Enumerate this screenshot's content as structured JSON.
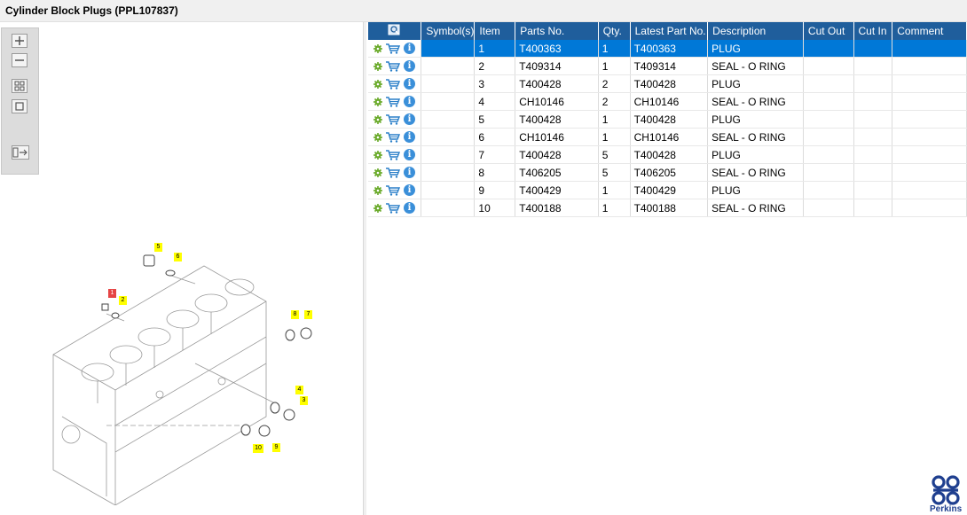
{
  "window": {
    "title": "Cylinder Block Plugs (PPL107837)"
  },
  "zoom_panel": {
    "buttons": [
      "zoom-in",
      "zoom-out",
      "fit-all",
      "fit-window",
      "toggle-panel"
    ]
  },
  "table": {
    "columns": [
      "",
      "Symbol(s)",
      "Item",
      "Parts No.",
      "Qty.",
      "Latest Part No.",
      "Description",
      "Cut Out",
      "Cut In",
      "Comment"
    ],
    "rows": [
      {
        "item": "1",
        "parts_no": "T400363",
        "qty": "1",
        "latest": "T400363",
        "desc": "PLUG",
        "selected": true
      },
      {
        "item": "2",
        "parts_no": "T409314",
        "qty": "1",
        "latest": "T409314",
        "desc": "SEAL - O RING"
      },
      {
        "item": "3",
        "parts_no": "T400428",
        "qty": "2",
        "latest": "T400428",
        "desc": "PLUG"
      },
      {
        "item": "4",
        "parts_no": "CH10146",
        "qty": "2",
        "latest": "CH10146",
        "desc": "SEAL - O RING"
      },
      {
        "item": "5",
        "parts_no": "T400428",
        "qty": "1",
        "latest": "T400428",
        "desc": "PLUG"
      },
      {
        "item": "6",
        "parts_no": "CH10146",
        "qty": "1",
        "latest": "CH10146",
        "desc": "SEAL - O RING"
      },
      {
        "item": "7",
        "parts_no": "T400428",
        "qty": "5",
        "latest": "T400428",
        "desc": "PLUG"
      },
      {
        "item": "8",
        "parts_no": "T406205",
        "qty": "5",
        "latest": "T406205",
        "desc": "SEAL - O RING"
      },
      {
        "item": "9",
        "parts_no": "T400429",
        "qty": "1",
        "latest": "T400429",
        "desc": "PLUG"
      },
      {
        "item": "10",
        "parts_no": "T400188",
        "qty": "1",
        "latest": "T400188",
        "desc": "SEAL - O RING"
      }
    ]
  },
  "drawing": {
    "callouts": [
      "1",
      "2",
      "3",
      "4",
      "5",
      "6",
      "7",
      "8",
      "9",
      "10"
    ]
  },
  "logo": {
    "text": "Perkins"
  },
  "colors": {
    "header": "#1f5e9c",
    "selected": "#0078d7",
    "callout": "#ffff00",
    "callout_selected": "#e64545"
  }
}
